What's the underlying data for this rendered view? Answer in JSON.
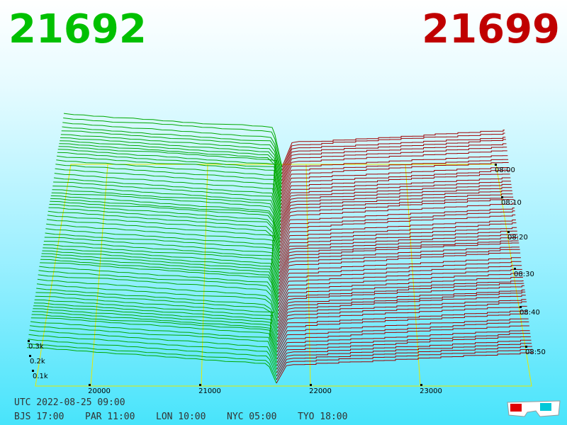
{
  "header": {
    "bid": "21692",
    "ask": "21699"
  },
  "price_axis": [
    "20000",
    "21000",
    "22000",
    "23000"
  ],
  "depth_axis": [
    "0.3k",
    "0.2k",
    "0.1k"
  ],
  "time_axis": [
    "08:00",
    "08:10",
    "08:20",
    "08:30",
    "08:40",
    "08:50"
  ],
  "footer": {
    "utc": "UTC 2022-08-25 09:00",
    "cities": [
      "BJS 17:00",
      "PAR 11:00",
      "LON 10:00",
      "NYC 05:00",
      "TYO 18:00"
    ]
  }
}
